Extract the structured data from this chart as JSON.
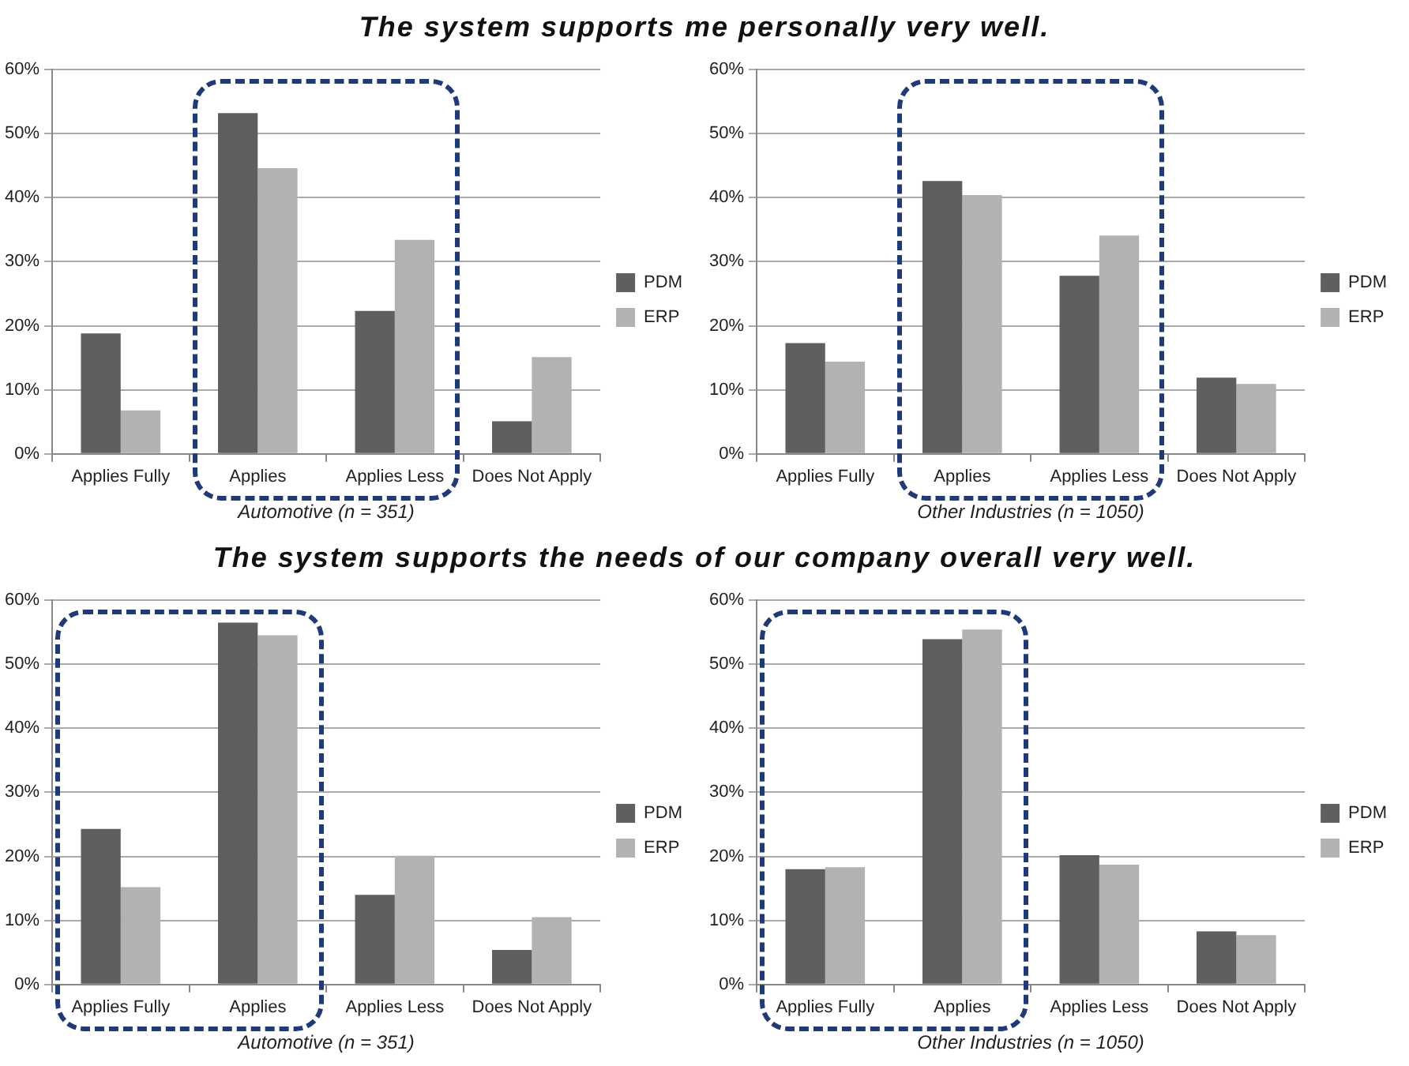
{
  "chart_data": [
    {
      "type": "bar",
      "title": "The system supports me personally very well.",
      "xlabel": "Automotive (n = 351)",
      "categories": [
        "Applies Fully",
        "Applies",
        "Applies Less",
        "Does Not Apply"
      ],
      "series": [
        {
          "name": "PDM",
          "color": "#5f5f5f",
          "values": [
            18.8,
            53.2,
            22.3,
            5.1
          ]
        },
        {
          "name": "ERP",
          "color": "#b2b2b2",
          "values": [
            6.8,
            44.6,
            33.4,
            15.1
          ]
        }
      ],
      "ylim": [
        0,
        60
      ],
      "yticks": [
        {
          "value": 0,
          "label": "0%"
        },
        {
          "value": 10,
          "label": "10%"
        },
        {
          "value": 20,
          "label": "20%"
        },
        {
          "value": 30,
          "label": "30%"
        },
        {
          "value": 40,
          "label": "40%"
        },
        {
          "value": 50,
          "label": "50%"
        },
        {
          "value": 60,
          "label": "60%"
        }
      ],
      "grid": "y",
      "legend": "right"
    },
    {
      "type": "bar",
      "xlabel": "Other Industries (n = 1050)",
      "categories": [
        "Applies Fully",
        "Applies",
        "Applies Less",
        "Does Not Apply"
      ],
      "series": [
        {
          "name": "PDM",
          "color": "#5f5f5f",
          "values": [
            17.3,
            42.6,
            27.8,
            11.9
          ]
        },
        {
          "name": "ERP",
          "color": "#b2b2b2",
          "values": [
            14.4,
            40.4,
            34.1,
            10.9
          ]
        }
      ],
      "ylim": [
        0,
        60
      ],
      "yticks": [
        {
          "value": 0,
          "label": "0%"
        },
        {
          "value": 10,
          "label": "10%"
        },
        {
          "value": 20,
          "label": "20%"
        },
        {
          "value": 30,
          "label": "30%"
        },
        {
          "value": 40,
          "label": "40%"
        },
        {
          "value": 50,
          "label": "50%"
        },
        {
          "value": 60,
          "label": "60%"
        }
      ],
      "grid": "y",
      "legend": "right"
    },
    {
      "type": "bar",
      "title": "The system supports the needs of our company overall very well.",
      "xlabel": "Automotive (n = 351)",
      "categories": [
        "Applies Fully",
        "Applies",
        "Applies Less",
        "Does Not Apply"
      ],
      "series": [
        {
          "name": "PDM",
          "color": "#5f5f5f",
          "values": [
            24.3,
            56.5,
            14.0,
            5.4
          ]
        },
        {
          "name": "ERP",
          "color": "#b2b2b2",
          "values": [
            15.2,
            54.5,
            20.1,
            10.5
          ]
        }
      ],
      "ylim": [
        0,
        60
      ],
      "yticks": [
        {
          "value": 0,
          "label": "0%"
        },
        {
          "value": 10,
          "label": "10%"
        },
        {
          "value": 20,
          "label": "20%"
        },
        {
          "value": 30,
          "label": "30%"
        },
        {
          "value": 40,
          "label": "40%"
        },
        {
          "value": 50,
          "label": "50%"
        },
        {
          "value": 60,
          "label": "60%"
        }
      ],
      "grid": "y",
      "legend": "right"
    },
    {
      "type": "bar",
      "xlabel": "Other Industries (n = 1050)",
      "categories": [
        "Applies Fully",
        "Applies",
        "Applies Less",
        "Does Not Apply"
      ],
      "series": [
        {
          "name": "PDM",
          "color": "#5f5f5f",
          "values": [
            18.0,
            53.9,
            20.2,
            8.3
          ]
        },
        {
          "name": "ERP",
          "color": "#b2b2b2",
          "values": [
            18.3,
            55.4,
            18.7,
            7.7
          ]
        }
      ],
      "ylim": [
        0,
        60
      ],
      "yticks": [
        {
          "value": 0,
          "label": "0%"
        },
        {
          "value": 10,
          "label": "10%"
        },
        {
          "value": 20,
          "label": "20%"
        },
        {
          "value": 30,
          "label": "30%"
        },
        {
          "value": 40,
          "label": "40%"
        },
        {
          "value": 50,
          "label": "50%"
        },
        {
          "value": 60,
          "label": "60%"
        }
      ],
      "grid": "y",
      "legend": "right"
    }
  ]
}
